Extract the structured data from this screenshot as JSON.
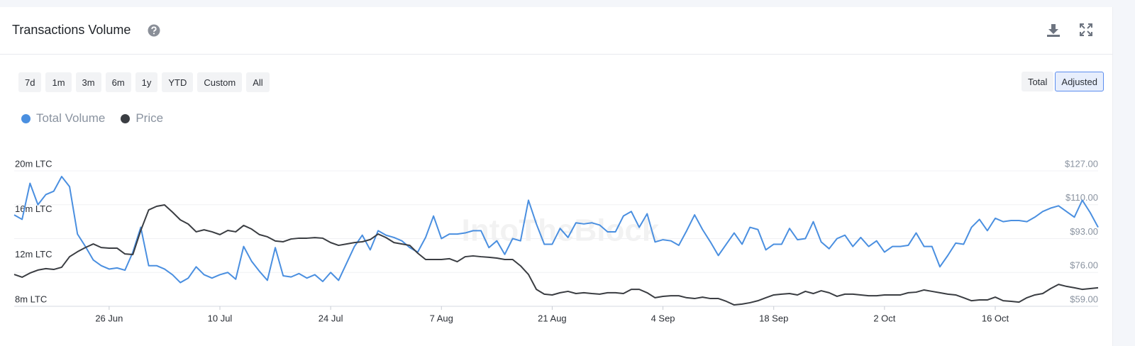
{
  "header": {
    "title": "Transactions Volume"
  },
  "range_buttons": [
    "7d",
    "1m",
    "3m",
    "6m",
    "1y",
    "YTD",
    "Custom",
    "All"
  ],
  "mode_buttons": [
    {
      "label": "Total",
      "active": false
    },
    {
      "label": "Adjusted",
      "active": true
    }
  ],
  "chart_data": {
    "type": "line",
    "watermark": "IntoTheBlock",
    "grid": true,
    "categories": [
      null,
      null,
      null,
      null,
      null,
      null,
      null,
      null,
      null,
      null,
      null,
      null,
      "26 Jun",
      null,
      null,
      null,
      null,
      null,
      null,
      null,
      null,
      null,
      null,
      null,
      null,
      null,
      "10 Jul",
      null,
      null,
      null,
      null,
      null,
      null,
      null,
      null,
      null,
      null,
      null,
      null,
      null,
      "24 Jul",
      null,
      null,
      null,
      null,
      null,
      null,
      null,
      null,
      null,
      null,
      null,
      null,
      null,
      "7 Aug",
      null,
      null,
      null,
      null,
      null,
      null,
      null,
      null,
      null,
      null,
      null,
      null,
      null,
      "21 Aug",
      null,
      null,
      null,
      null,
      null,
      null,
      null,
      null,
      null,
      null,
      null,
      null,
      null,
      "4 Sep",
      null,
      null,
      null,
      null,
      null,
      null,
      null,
      null,
      null,
      null,
      null,
      null,
      null,
      "18 Sep",
      null,
      null,
      null,
      null,
      null,
      null,
      null,
      null,
      null,
      null,
      null,
      null,
      null,
      "2 Oct",
      null,
      null,
      null,
      null,
      null,
      null,
      null,
      null,
      null,
      null,
      null,
      null,
      null,
      "16 Oct",
      null,
      null,
      null,
      null,
      null,
      null,
      null,
      null,
      null,
      null,
      null,
      null,
      null
    ],
    "series": [
      {
        "name": "Total Volume",
        "color": "#4a8fe0",
        "values": [
          16.1,
          15.7,
          18.9,
          17.0,
          17.9,
          18.2,
          19.5,
          18.6,
          14.4,
          13.3,
          12.1,
          11.6,
          11.3,
          11.4,
          11.2,
          12.8,
          15.0,
          11.6,
          11.6,
          11.3,
          10.8,
          10.1,
          10.5,
          11.5,
          10.8,
          10.5,
          10.8,
          11.0,
          10.4,
          13.3,
          12.0,
          11.1,
          10.3,
          13.2,
          10.7,
          10.6,
          10.9,
          10.5,
          10.8,
          10.2,
          11.0,
          10.3,
          11.8,
          13.3,
          14.3,
          13.0,
          14.7,
          14.3,
          14.1,
          13.8,
          13.2,
          12.8,
          14.1,
          16.0,
          14.0,
          14.4,
          14.4,
          14.5,
          14.7,
          14.7,
          13.2,
          13.8,
          12.6,
          14.0,
          13.8,
          17.4,
          15.3,
          13.5,
          13.5,
          14.9,
          14.1,
          15.4,
          15.3,
          15.4,
          15.2,
          14.6,
          14.6,
          16.0,
          16.4,
          15.0,
          16.2,
          13.7,
          13.9,
          13.8,
          13.4,
          14.7,
          16.1,
          14.8,
          13.7,
          12.5,
          13.5,
          14.5,
          13.5,
          15.0,
          14.8,
          13.0,
          13.5,
          13.5,
          14.9,
          13.9,
          14.0,
          15.5,
          13.7,
          13.1,
          14.0,
          14.3,
          13.3,
          14.1,
          13.3,
          13.8,
          12.8,
          13.3,
          13.3,
          13.4,
          14.5,
          13.3,
          13.3,
          11.5,
          12.5,
          13.6,
          13.5,
          15.0,
          15.7,
          14.7,
          15.8,
          15.5,
          15.6,
          15.6,
          15.5,
          15.9,
          16.4,
          16.7,
          16.9,
          16.4,
          15.9,
          17.4,
          16.3,
          15.0
        ]
      },
      {
        "name": "Price",
        "color": "#3a3d42",
        "axis": "y2",
        "values": [
          75.0,
          73.6,
          75.7,
          77.2,
          77.9,
          77.5,
          78.6,
          83.9,
          86.4,
          88.5,
          90.3,
          88.5,
          88.2,
          88.2,
          85.3,
          85.0,
          97.1,
          107.4,
          109.2,
          109.9,
          106.3,
          102.4,
          100.3,
          96.4,
          97.4,
          96.4,
          95.0,
          97.1,
          96.4,
          99.6,
          97.8,
          95.0,
          93.9,
          91.8,
          91.4,
          92.8,
          93.2,
          93.2,
          93.5,
          93.2,
          91.0,
          89.6,
          90.3,
          91.0,
          91.4,
          92.5,
          95.3,
          93.5,
          91.0,
          90.3,
          89.6,
          85.7,
          82.5,
          82.5,
          82.5,
          82.9,
          81.4,
          83.9,
          84.3,
          83.9,
          83.6,
          83.2,
          82.5,
          82.5,
          79.3,
          75.0,
          67.5,
          65.1,
          64.7,
          65.8,
          66.5,
          65.4,
          65.8,
          65.4,
          65.1,
          65.8,
          65.8,
          65.4,
          67.5,
          67.5,
          65.8,
          63.3,
          64.0,
          64.3,
          64.3,
          63.3,
          62.9,
          63.6,
          62.9,
          62.9,
          61.5,
          59.7,
          60.1,
          60.8,
          61.8,
          63.3,
          64.7,
          65.1,
          65.4,
          64.7,
          66.5,
          65.4,
          66.8,
          65.8,
          64.0,
          65.1,
          65.1,
          64.7,
          64.3,
          64.3,
          64.7,
          64.7,
          64.7,
          65.8,
          66.1,
          67.2,
          66.5,
          65.8,
          65.1,
          64.7,
          63.3,
          61.8,
          62.2,
          62.2,
          63.6,
          61.8,
          61.5,
          61.1,
          63.3,
          64.7,
          65.4,
          67.9,
          70.0,
          69.0,
          68.3,
          67.5,
          67.9,
          68.3
        ]
      }
    ],
    "ylim": [
      8,
      20
    ],
    "yticks": [
      {
        "value": 8,
        "label": "8m LTC"
      },
      {
        "value": 12,
        "label": "12m LTC"
      },
      {
        "value": 16,
        "label": "16m LTC"
      },
      {
        "value": 20,
        "label": "20m LTC"
      }
    ],
    "y2lim": [
      59,
      127
    ],
    "y2ticks": [
      {
        "value": 59,
        "label": "$59.00"
      },
      {
        "value": 76,
        "label": "$76.00"
      },
      {
        "value": 93,
        "label": "$93.00"
      },
      {
        "value": 110,
        "label": "$110.00"
      },
      {
        "value": 127,
        "label": "$127.00"
      }
    ]
  }
}
